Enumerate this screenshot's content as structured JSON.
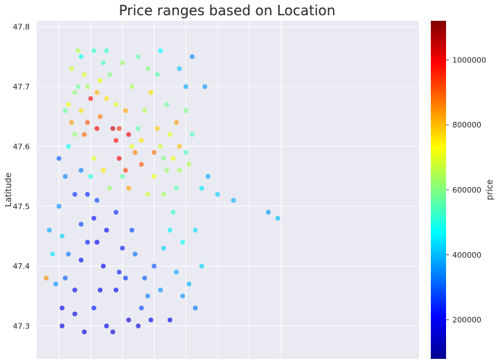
{
  "chart_data": {
    "type": "scatter",
    "title": "Price ranges based on Location",
    "xlabel": "",
    "ylabel": "Latitude",
    "ylim": [
      47.245,
      47.81
    ],
    "xlim": [
      -122.52,
      -121.315
    ],
    "y_ticks": [
      47.3,
      47.4,
      47.5,
      47.6,
      47.7,
      47.8
    ],
    "y_tick_labels": [
      "47.3",
      "47.4",
      "47.5",
      "47.6",
      "47.7",
      "47.8"
    ],
    "x_gridlines": [
      -122.45,
      -122.35,
      -122.25,
      -122.15,
      -122.05,
      -121.95,
      -121.85,
      -121.75
    ],
    "grid": true,
    "colorbar": {
      "label": "price",
      "colormap": "jet",
      "range": [
        80000,
        1120000
      ],
      "ticks": [
        200000,
        400000,
        600000,
        800000,
        1000000
      ],
      "tick_labels": [
        "200000",
        "400000",
        "600000",
        "800000",
        "1000000"
      ]
    },
    "series": [
      {
        "points": [
          [
            -122.39,
            47.76,
            650000
          ],
          [
            -122.37,
            47.72,
            700000
          ],
          [
            -122.4,
            47.69,
            620000
          ],
          [
            -122.38,
            47.66,
            760000
          ],
          [
            -122.41,
            47.64,
            830000
          ],
          [
            -122.35,
            47.68,
            980000
          ],
          [
            -122.36,
            47.64,
            900000
          ],
          [
            -122.33,
            47.63,
            1000000
          ],
          [
            -122.32,
            47.65,
            870000
          ],
          [
            -122.3,
            47.68,
            760000
          ],
          [
            -122.29,
            47.72,
            600000
          ],
          [
            -122.3,
            47.76,
            520000
          ],
          [
            -122.28,
            47.63,
            1050000
          ],
          [
            -122.27,
            47.61,
            980000
          ],
          [
            -122.26,
            47.58,
            1000000
          ],
          [
            -122.24,
            47.56,
            920000
          ],
          [
            -122.23,
            47.53,
            830000
          ],
          [
            -122.22,
            47.6,
            700000
          ],
          [
            -122.2,
            47.63,
            560000
          ],
          [
            -122.18,
            47.66,
            650000
          ],
          [
            -122.16,
            47.69,
            760000
          ],
          [
            -122.14,
            47.72,
            560000
          ],
          [
            -122.13,
            47.76,
            470000
          ],
          [
            -122.11,
            47.67,
            580000
          ],
          [
            -122.1,
            47.62,
            700000
          ],
          [
            -122.12,
            47.58,
            600000
          ],
          [
            -122.07,
            47.6,
            800000
          ],
          [
            -122.04,
            47.57,
            650000
          ],
          [
            -122.03,
            47.62,
            550000
          ],
          [
            -122.0,
            47.53,
            450000
          ],
          [
            -121.98,
            47.55,
            380000
          ],
          [
            -121.95,
            47.52,
            420000
          ],
          [
            -121.9,
            47.51,
            390000
          ],
          [
            -122.07,
            47.73,
            410000
          ],
          [
            -122.05,
            47.7,
            380000
          ],
          [
            -122.03,
            47.75,
            350000
          ],
          [
            -121.79,
            47.49,
            360000
          ],
          [
            -121.76,
            47.48,
            400000
          ],
          [
            -122.43,
            47.55,
            350000
          ],
          [
            -122.4,
            47.52,
            260000
          ],
          [
            -122.36,
            47.52,
            250000
          ],
          [
            -122.34,
            47.48,
            220000
          ],
          [
            -122.33,
            47.44,
            210000
          ],
          [
            -122.31,
            47.4,
            200000
          ],
          [
            -122.36,
            47.44,
            240000
          ],
          [
            -122.38,
            47.47,
            280000
          ],
          [
            -122.42,
            47.42,
            330000
          ],
          [
            -122.43,
            47.38,
            300000
          ],
          [
            -122.44,
            47.33,
            190000
          ],
          [
            -122.4,
            47.32,
            180000
          ],
          [
            -122.34,
            47.33,
            230000
          ],
          [
            -122.3,
            47.3,
            190000
          ],
          [
            -122.27,
            47.36,
            210000
          ],
          [
            -122.24,
            47.38,
            260000
          ],
          [
            -122.25,
            47.43,
            230000
          ],
          [
            -122.22,
            47.46,
            280000
          ],
          [
            -122.27,
            47.49,
            250000
          ],
          [
            -122.21,
            47.42,
            320000
          ],
          [
            -122.18,
            47.38,
            300000
          ],
          [
            -122.17,
            47.35,
            340000
          ],
          [
            -122.15,
            47.4,
            290000
          ],
          [
            -122.13,
            47.36,
            360000
          ],
          [
            -122.16,
            47.31,
            210000
          ],
          [
            -122.19,
            47.33,
            280000
          ],
          [
            -122.12,
            47.43,
            420000
          ],
          [
            -122.1,
            47.46,
            460000
          ],
          [
            -122.08,
            47.39,
            380000
          ],
          [
            -122.06,
            47.35,
            360000
          ],
          [
            -122.4,
            47.36,
            200000
          ],
          [
            -122.37,
            47.29,
            170000
          ],
          [
            -122.28,
            47.29,
            160000
          ],
          [
            -122.48,
            47.46,
            380000
          ],
          [
            -122.47,
            47.42,
            450000
          ],
          [
            -122.49,
            47.38,
            850000
          ],
          [
            -122.46,
            47.37,
            360000
          ],
          [
            -122.44,
            47.45,
            420000
          ],
          [
            -122.45,
            47.5,
            350000
          ],
          [
            -122.41,
            47.73,
            680000
          ],
          [
            -122.39,
            47.7,
            580000
          ],
          [
            -122.42,
            47.67,
            720000
          ],
          [
            -122.37,
            47.62,
            880000
          ],
          [
            -122.34,
            47.58,
            700000
          ],
          [
            -122.35,
            47.55,
            500000
          ],
          [
            -122.31,
            47.56,
            750000
          ],
          [
            -122.29,
            47.53,
            620000
          ],
          [
            -122.25,
            47.55,
            560000
          ],
          [
            -122.19,
            47.57,
            900000
          ],
          [
            -122.17,
            47.52,
            680000
          ],
          [
            -122.12,
            47.52,
            640000
          ],
          [
            -122.09,
            47.49,
            520000
          ],
          [
            -122.06,
            47.44,
            480000
          ],
          [
            -122.02,
            47.46,
            440000
          ],
          [
            -122.0,
            47.4,
            420000
          ],
          [
            -122.04,
            47.37,
            400000
          ],
          [
            -122.02,
            47.33,
            330000
          ],
          [
            -122.32,
            47.71,
            720000
          ],
          [
            -122.25,
            47.74,
            620000
          ],
          [
            -122.22,
            47.7,
            640000
          ],
          [
            -122.2,
            47.75,
            560000
          ],
          [
            -122.17,
            47.73,
            600000
          ],
          [
            -122.14,
            47.63,
            780000
          ],
          [
            -122.11,
            47.56,
            620000
          ],
          [
            -122.08,
            47.64,
            830000
          ],
          [
            -122.05,
            47.66,
            600000
          ],
          [
            -122.15,
            47.55,
            720000
          ],
          [
            -122.08,
            47.53,
            560000
          ],
          [
            -121.99,
            47.7,
            360000
          ],
          [
            -122.45,
            47.58,
            300000
          ],
          [
            -122.44,
            47.3,
            180000
          ],
          [
            -122.23,
            47.31,
            170000
          ],
          [
            -122.2,
            47.3,
            180000
          ],
          [
            -122.1,
            47.31,
            210000
          ],
          [
            -122.26,
            47.39,
            240000
          ],
          [
            -122.32,
            47.36,
            190000
          ],
          [
            -122.38,
            47.41,
            220000
          ],
          [
            -122.3,
            47.46,
            210000
          ],
          [
            -122.33,
            47.51,
            280000
          ],
          [
            -122.38,
            47.56,
            340000
          ],
          [
            -122.42,
            47.6,
            480000
          ],
          [
            -122.4,
            47.62,
            620000
          ],
          [
            -122.43,
            47.66,
            580000
          ],
          [
            -122.38,
            47.75,
            480000
          ],
          [
            -122.34,
            47.76,
            520000
          ],
          [
            -122.31,
            47.74,
            540000
          ],
          [
            -122.36,
            47.7,
            640000
          ],
          [
            -122.33,
            47.69,
            800000
          ],
          [
            -122.27,
            47.67,
            700000
          ],
          [
            -122.24,
            47.66,
            820000
          ],
          [
            -122.26,
            47.63,
            940000
          ],
          [
            -122.23,
            47.62,
            1000000
          ],
          [
            -122.21,
            47.59,
            860000
          ],
          [
            -122.19,
            47.61,
            760000
          ],
          [
            -122.15,
            47.59,
            880000
          ],
          [
            -122.13,
            47.6,
            680000
          ],
          [
            -122.09,
            47.58,
            720000
          ],
          [
            -122.07,
            47.56,
            640000
          ],
          [
            -122.05,
            47.59,
            540000
          ]
        ]
      }
    ]
  }
}
